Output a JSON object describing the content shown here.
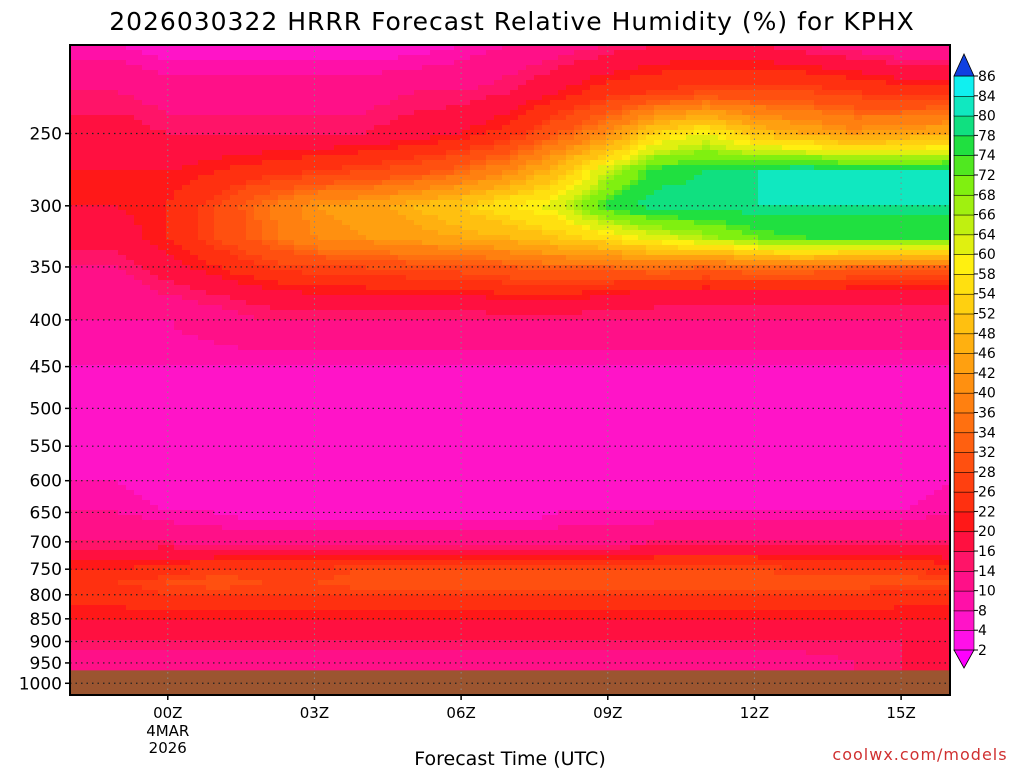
{
  "chart_data": {
    "type": "heatmap",
    "title": "2026030322 HRRR Forecast Relative Humidity (%) for KPHX",
    "xlabel": "Forecast Time (UTC)",
    "ylabel": "",
    "credit": "coolwx.com/models",
    "x_ticks": [
      {
        "hour": 0,
        "label": "00Z",
        "sub": [
          "4MAR",
          "2026"
        ]
      },
      {
        "hour": 3,
        "label": "03Z"
      },
      {
        "hour": 6,
        "label": "06Z"
      },
      {
        "hour": 9,
        "label": "09Z"
      },
      {
        "hour": 12,
        "label": "12Z"
      },
      {
        "hour": 15,
        "label": "15Z"
      }
    ],
    "xlim_hours": [
      -2,
      16
    ],
    "y_ticks": [
      250,
      300,
      350,
      400,
      450,
      500,
      550,
      600,
      650,
      700,
      750,
      800,
      850,
      900,
      950,
      1000
    ],
    "y_tick_labels": [
      "250",
      "300",
      "350",
      "400",
      "450",
      "500",
      "550",
      "600",
      "650",
      "700",
      "750",
      "800",
      "850",
      "900",
      "950",
      "1000"
    ],
    "ylim_hpa": [
      200,
      1030
    ],
    "surface_pressure_hpa": 968,
    "colorbar": {
      "levels": [
        2,
        4,
        8,
        10,
        14,
        16,
        20,
        22,
        26,
        28,
        32,
        34,
        36,
        40,
        42,
        46,
        48,
        52,
        54,
        58,
        60,
        64,
        66,
        68,
        72,
        74,
        78,
        80,
        84,
        86
      ],
      "labels": [
        "2",
        "4",
        "8",
        "10",
        "14",
        "16",
        "20",
        "22",
        "26",
        "28",
        "32",
        "34",
        "36",
        "40",
        "42",
        "46",
        "48",
        "52",
        "54",
        "58",
        "60",
        "64",
        "66",
        "68",
        "72",
        "74",
        "78",
        "80",
        "84",
        "86"
      ]
    },
    "grid": true,
    "x_hours": [
      -2,
      -1,
      0,
      1,
      2,
      3,
      4,
      5,
      6,
      7,
      8,
      9,
      10,
      11,
      12,
      13,
      14,
      15,
      16
    ],
    "pressure_levels": [
      200,
      225,
      250,
      275,
      300,
      325,
      350,
      375,
      400,
      450,
      500,
      550,
      600,
      650,
      700,
      750,
      775,
      800,
      850,
      900,
      950
    ],
    "rh_percent": [
      [
        8,
        8,
        6,
        6,
        6,
        6,
        6,
        6,
        8,
        10,
        12,
        14,
        16,
        16,
        16,
        14,
        12,
        10,
        10
      ],
      [
        14,
        14,
        12,
        12,
        12,
        12,
        12,
        14,
        14,
        16,
        20,
        24,
        26,
        28,
        28,
        28,
        26,
        24,
        24
      ],
      [
        18,
        18,
        16,
        16,
        16,
        16,
        16,
        18,
        20,
        24,
        32,
        40,
        54,
        60,
        50,
        46,
        42,
        44,
        46
      ],
      [
        20,
        20,
        20,
        22,
        24,
        26,
        28,
        30,
        34,
        40,
        50,
        64,
        76,
        78,
        80,
        82,
        80,
        80,
        80
      ],
      [
        20,
        20,
        22,
        28,
        36,
        42,
        44,
        48,
        52,
        58,
        62,
        76,
        80,
        80,
        80,
        80,
        80,
        80,
        80
      ],
      [
        18,
        18,
        22,
        28,
        34,
        40,
        42,
        44,
        46,
        48,
        52,
        56,
        62,
        66,
        72,
        74,
        74,
        74,
        74
      ],
      [
        14,
        14,
        18,
        22,
        26,
        28,
        28,
        30,
        30,
        32,
        34,
        34,
        36,
        34,
        36,
        36,
        34,
        34,
        34
      ],
      [
        12,
        12,
        14,
        16,
        18,
        20,
        20,
        20,
        20,
        22,
        22,
        20,
        18,
        18,
        18,
        18,
        18,
        18,
        18
      ],
      [
        10,
        10,
        10,
        12,
        14,
        14,
        14,
        14,
        14,
        14,
        14,
        14,
        14,
        14,
        14,
        14,
        14,
        14,
        14
      ],
      [
        8,
        8,
        8,
        8,
        8,
        8,
        8,
        8,
        8,
        8,
        8,
        8,
        8,
        8,
        8,
        8,
        8,
        8,
        8
      ],
      [
        6,
        6,
        6,
        6,
        6,
        6,
        6,
        6,
        6,
        6,
        6,
        6,
        6,
        4,
        4,
        4,
        6,
        6,
        6
      ],
      [
        6,
        6,
        4,
        4,
        4,
        4,
        4,
        4,
        4,
        4,
        4,
        4,
        4,
        4,
        4,
        4,
        4,
        4,
        6
      ],
      [
        8,
        8,
        6,
        4,
        4,
        4,
        4,
        4,
        4,
        4,
        4,
        4,
        4,
        4,
        4,
        4,
        6,
        6,
        8
      ],
      [
        10,
        10,
        8,
        8,
        6,
        6,
        6,
        6,
        6,
        6,
        8,
        8,
        8,
        8,
        8,
        8,
        8,
        8,
        10
      ],
      [
        14,
        14,
        14,
        12,
        12,
        12,
        12,
        12,
        12,
        12,
        12,
        12,
        14,
        14,
        14,
        14,
        14,
        14,
        14
      ],
      [
        22,
        22,
        24,
        26,
        26,
        26,
        28,
        28,
        28,
        28,
        28,
        28,
        28,
        28,
        28,
        26,
        26,
        26,
        24
      ],
      [
        26,
        26,
        28,
        30,
        28,
        28,
        30,
        30,
        30,
        30,
        30,
        30,
        30,
        30,
        30,
        30,
        30,
        30,
        28
      ],
      [
        24,
        24,
        26,
        26,
        26,
        26,
        26,
        26,
        26,
        26,
        26,
        26,
        26,
        26,
        26,
        26,
        26,
        24,
        24
      ],
      [
        20,
        20,
        20,
        20,
        20,
        20,
        20,
        20,
        20,
        20,
        20,
        20,
        20,
        20,
        20,
        20,
        20,
        20,
        20
      ],
      [
        16,
        16,
        16,
        16,
        16,
        16,
        16,
        16,
        16,
        16,
        16,
        16,
        16,
        16,
        16,
        16,
        16,
        16,
        16
      ],
      [
        12,
        12,
        12,
        12,
        12,
        12,
        12,
        12,
        12,
        12,
        12,
        12,
        12,
        12,
        12,
        12,
        14,
        16,
        18
      ]
    ]
  },
  "colors": {
    "ground": "#9b5530",
    "background": "#ffffff",
    "credit": "#d03030",
    "palette": [
      "#ff00ff",
      "#ff10e8",
      "#ff14c8",
      "#ff10a8",
      "#ff1088",
      "#ff1468",
      "#ff1040",
      "#ff1818",
      "#ff3010",
      "#ff4010",
      "#ff5010",
      "#ff6010",
      "#ff7010",
      "#ff8010",
      "#ff9010",
      "#ffa010",
      "#ffb010",
      "#ffc010",
      "#ffd010",
      "#ffe010",
      "#fff010",
      "#e0f010",
      "#c0f010",
      "#a0f010",
      "#80f010",
      "#50e820",
      "#20e040",
      "#10e080",
      "#10e8c0",
      "#10f0f0",
      "#10d0f8",
      "#10b0ff",
      "#1090ff",
      "#1070ff",
      "#1050f0",
      "#1040e0"
    ]
  }
}
